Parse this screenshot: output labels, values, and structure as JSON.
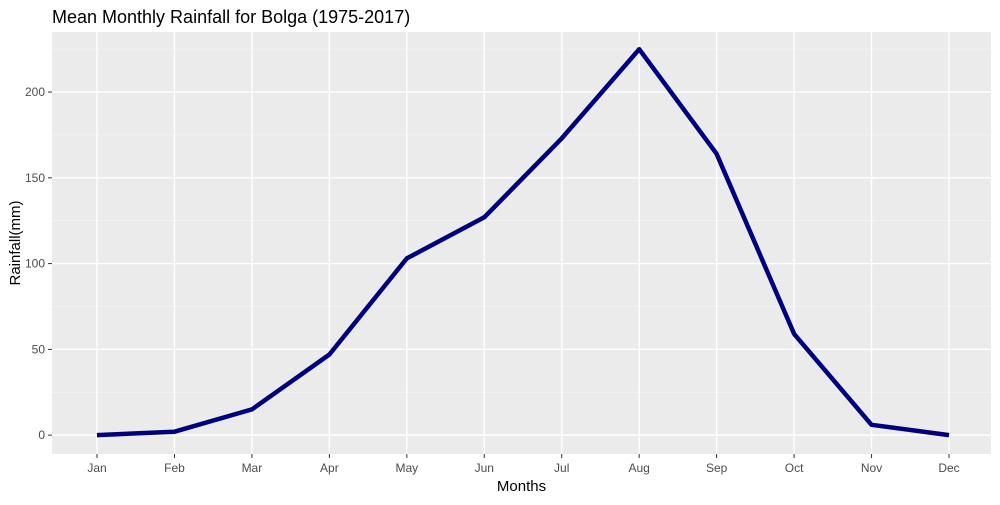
{
  "chart_data": {
    "type": "line",
    "title": "Mean Monthly Rainfall for Bolga (1975-2017)",
    "xlabel": "Months",
    "ylabel": "Rainfall(mm)",
    "categories": [
      "Jan",
      "Feb",
      "Mar",
      "Apr",
      "May",
      "Jun",
      "Jul",
      "Aug",
      "Sep",
      "Oct",
      "Nov",
      "Dec"
    ],
    "series": [
      {
        "values": [
          0,
          2,
          15,
          47,
          103,
          127,
          173,
          225,
          164,
          59,
          6,
          0
        ]
      }
    ],
    "ylim": [
      -11,
      235
    ],
    "yticks": [
      0,
      50,
      100,
      150,
      200
    ],
    "grid": true,
    "legend": "none",
    "colors": {
      "panel_background": "#ebebeb",
      "grid_major": "#ffffff",
      "grid_minor": "#f5f5f5",
      "line": "#00007f",
      "tick_text": "#4d4d4d",
      "tick_mark": "#333333"
    }
  }
}
